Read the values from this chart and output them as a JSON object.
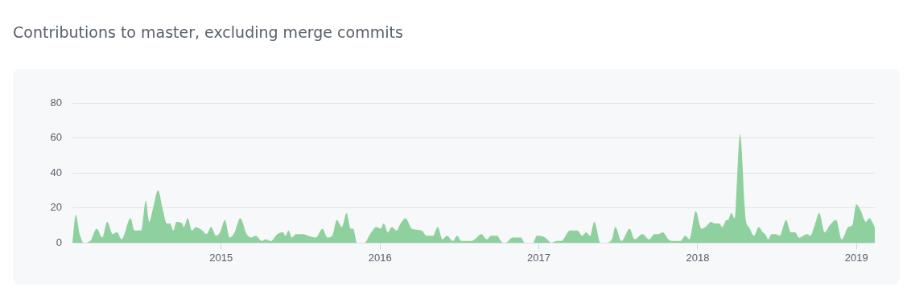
{
  "chart_data": {
    "type": "area",
    "title": "Contributions to master, excluding merge commits",
    "x": [
      2014.064,
      2014.085,
      2014.11,
      2014.136,
      2014.176,
      2014.217,
      2014.252,
      2014.283,
      2014.318,
      2014.344,
      2014.374,
      2014.43,
      2014.455,
      2014.496,
      2014.526,
      2014.547,
      2014.572,
      2014.603,
      2014.633,
      2014.658,
      2014.679,
      2014.699,
      2014.719,
      2014.755,
      2014.765,
      2014.79,
      2014.816,
      2014.841,
      2014.882,
      2014.907,
      2014.938,
      2014.968,
      2014.993,
      2015.024,
      2015.054,
      2015.085,
      2015.12,
      2015.161,
      2015.191,
      2015.217,
      2015.257,
      2015.278,
      2015.313,
      2015.354,
      2015.389,
      2015.405,
      2015.425,
      2015.445,
      2015.471,
      2015.516,
      2015.547,
      2015.597,
      2015.638,
      2015.669,
      2015.699,
      2015.729,
      2015.76,
      2015.79,
      2015.816,
      2015.831,
      2015.856,
      2015.902,
      2015.938,
      2015.978,
      2016.004,
      2016.024,
      2016.049,
      2016.075,
      2016.105,
      2016.13,
      2016.161,
      2016.201,
      2016.262,
      2016.293,
      2016.333,
      2016.364,
      2016.394,
      2016.42,
      2016.46,
      2016.486,
      2016.511,
      2016.572,
      2016.597,
      2016.638,
      2016.673,
      2016.699,
      2016.734,
      2016.775,
      2016.79,
      2016.836,
      2016.887,
      2016.912,
      2016.963,
      2016.988,
      2017.039,
      2017.08,
      2017.115,
      2017.141,
      2017.196,
      2017.242,
      2017.273,
      2017.298,
      2017.323,
      2017.349,
      2017.389,
      2017.42,
      2017.46,
      2017.481,
      2017.521,
      2017.572,
      2017.602,
      2017.653,
      2017.694,
      2017.729,
      2017.755,
      2017.78,
      2017.816,
      2017.841,
      2017.866,
      2017.892,
      2017.922,
      2017.948,
      2017.988,
      2018.024,
      2018.049,
      2018.085,
      2018.105,
      2018.135,
      2018.156,
      2018.181,
      2018.191,
      2018.212,
      2018.232,
      2018.267,
      2018.303,
      2018.323,
      2018.354,
      2018.384,
      2018.41,
      2018.425,
      2018.445,
      2018.465,
      2018.491,
      2018.516,
      2018.557,
      2018.587,
      2018.613,
      2018.638,
      2018.689,
      2018.709,
      2018.74,
      2018.765,
      2018.8,
      2018.831,
      2018.872,
      2018.907,
      2018.948,
      2018.973,
      2018.999,
      2019.024,
      2019.059,
      2019.08,
      2019.115
    ],
    "series": [
      {
        "color": "#8fd19e",
        "values": [
          0,
          16,
          5,
          0,
          1,
          8,
          3,
          12,
          5,
          6,
          2,
          14,
          7,
          7,
          24,
          12,
          20,
          30,
          19,
          11,
          11,
          7,
          12,
          11,
          9,
          14,
          7,
          9,
          7,
          5,
          9,
          4,
          6,
          13,
          3,
          6,
          14,
          5,
          3,
          4,
          1,
          2,
          1,
          5,
          6,
          4,
          7,
          3,
          5,
          5,
          4,
          3,
          8,
          3,
          4,
          13,
          9,
          17,
          8,
          8,
          0,
          0,
          5,
          9,
          8,
          11,
          6,
          9,
          7,
          11,
          14,
          8,
          7,
          4,
          4,
          9,
          2,
          4,
          1,
          4,
          1,
          1,
          2,
          5,
          2,
          4,
          4,
          0,
          0,
          3,
          3,
          0,
          0,
          4,
          3,
          0,
          1,
          1,
          7,
          7,
          4,
          6,
          4,
          12,
          0,
          0,
          2,
          9,
          1,
          8,
          2,
          5,
          2,
          5,
          5,
          6,
          2,
          1,
          1,
          1,
          4,
          2,
          18,
          8,
          9,
          12,
          11,
          11,
          9,
          13,
          13,
          17,
          14,
          62,
          13,
          9,
          4,
          9,
          6,
          5,
          2,
          5,
          5,
          4,
          13,
          6,
          6,
          3,
          5,
          4,
          11,
          17,
          6,
          10,
          13,
          2,
          9,
          10,
          22,
          19,
          12,
          14,
          9
        ]
      }
    ],
    "xlim": [
      2014.064,
      2019.115
    ],
    "xticks": [
      2015,
      2016,
      2017,
      2018,
      2019
    ],
    "ylim": [
      0,
      80
    ],
    "yticks": [
      0,
      20,
      40,
      60,
      80
    ],
    "grid": "y"
  }
}
